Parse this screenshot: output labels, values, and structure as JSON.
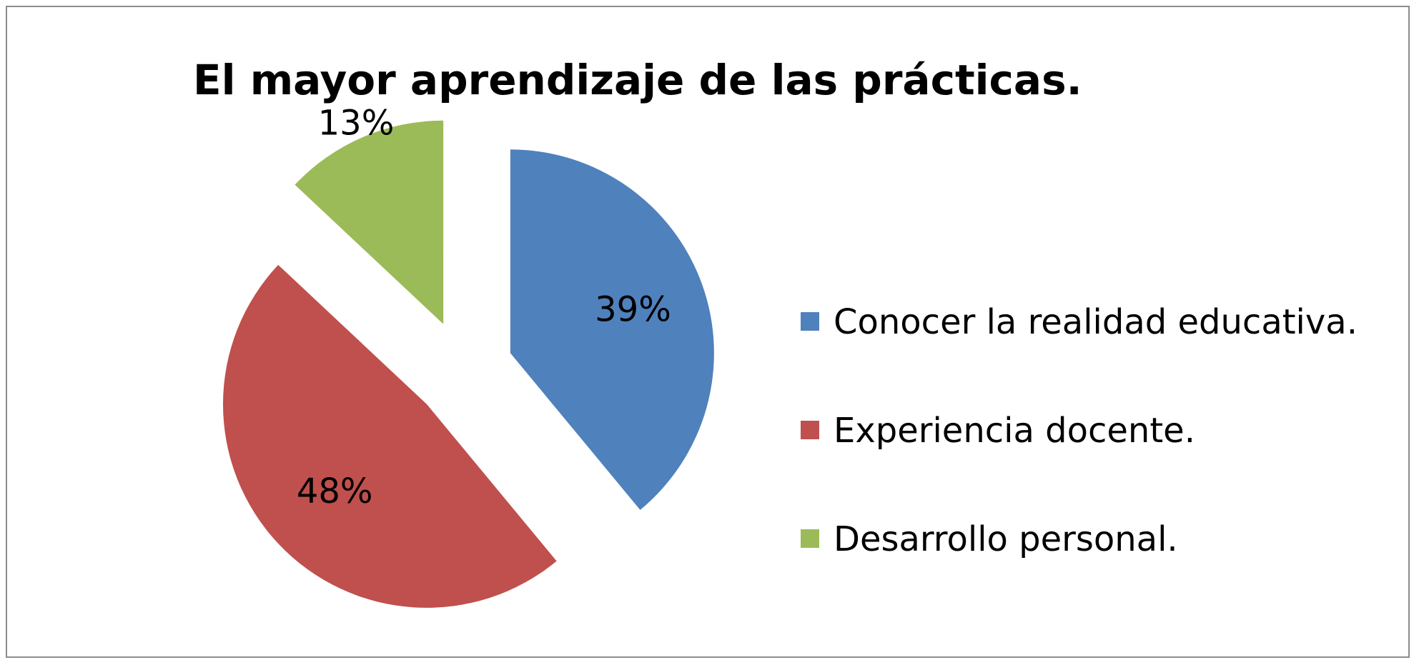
{
  "chart_data": {
    "type": "pie",
    "title": "El mayor aprendizaje de las prácticas.",
    "categories": [
      "Conocer la realidad educativa.",
      "Experiencia docente.",
      "Desarrollo personal."
    ],
    "values": [
      39,
      48,
      13
    ],
    "labels": [
      "39%",
      "48%",
      "13%"
    ],
    "colors": [
      "#4f81bd",
      "#c0504d",
      "#9bbb59"
    ],
    "exploded": true,
    "legend_position": "right",
    "start_angle": "12 o'clock, clockwise"
  }
}
